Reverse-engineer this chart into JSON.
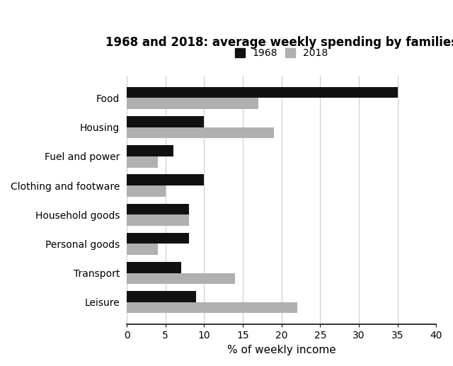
{
  "title": "1968 and 2018: average weekly spending by families",
  "categories": [
    "Food",
    "Housing",
    "Fuel and power",
    "Clothing and footware",
    "Household goods",
    "Personal goods",
    "Transport",
    "Leisure"
  ],
  "values_1968": [
    35,
    10,
    6,
    10,
    8,
    8,
    7,
    9
  ],
  "values_2018": [
    17,
    19,
    4,
    5,
    8,
    4,
    14,
    22
  ],
  "color_1968": "#111111",
  "color_2018": "#b0b0b0",
  "xlabel": "% of weekly income",
  "xlim": [
    0,
    40
  ],
  "xticks": [
    0,
    5,
    10,
    15,
    20,
    25,
    30,
    35,
    40
  ],
  "legend_labels": [
    "1968",
    "2018"
  ],
  "bar_height": 0.38,
  "background_color": "#ffffff",
  "grid_color": "#cccccc"
}
